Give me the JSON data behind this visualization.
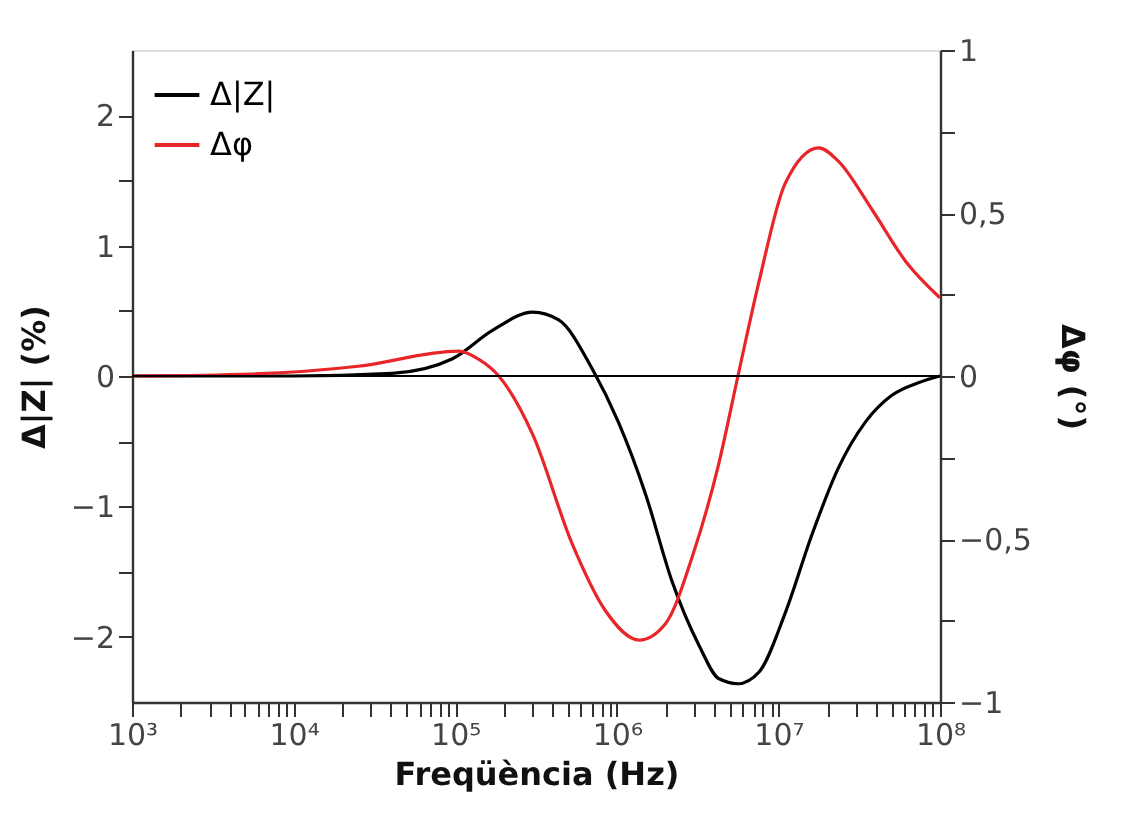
{
  "chart_data": {
    "type": "line",
    "xlabel": "Freqüència (Hz)",
    "ylabel": "Δ|Z| (%)",
    "y2label": "Δφ (°)",
    "log": "x",
    "xlim": [
      1000,
      100000000
    ],
    "xticks": [
      {
        "value": 1000,
        "label": "10³"
      },
      {
        "value": 2000,
        "label": null
      },
      {
        "value": 3000,
        "label": null
      },
      {
        "value": 4000,
        "label": null
      },
      {
        "value": 5000,
        "label": null
      },
      {
        "value": 6000,
        "label": null
      },
      {
        "value": 7000,
        "label": null
      },
      {
        "value": 8000,
        "label": null
      },
      {
        "value": 9000,
        "label": null
      },
      {
        "value": 10000,
        "label": "10⁴"
      },
      {
        "value": 20000,
        "label": null
      },
      {
        "value": 30000,
        "label": null
      },
      {
        "value": 40000,
        "label": null
      },
      {
        "value": 50000,
        "label": null
      },
      {
        "value": 60000,
        "label": null
      },
      {
        "value": 70000,
        "label": null
      },
      {
        "value": 80000,
        "label": null
      },
      {
        "value": 90000,
        "label": null
      },
      {
        "value": 100000,
        "label": "10⁵"
      },
      {
        "value": 200000,
        "label": null
      },
      {
        "value": 300000,
        "label": null
      },
      {
        "value": 400000,
        "label": null
      },
      {
        "value": 500000,
        "label": null
      },
      {
        "value": 600000,
        "label": null
      },
      {
        "value": 700000,
        "label": null
      },
      {
        "value": 800000,
        "label": null
      },
      {
        "value": 900000,
        "label": null
      },
      {
        "value": 1000000,
        "label": "10⁶"
      },
      {
        "value": 2000000,
        "label": null
      },
      {
        "value": 3000000,
        "label": null
      },
      {
        "value": 4000000,
        "label": null
      },
      {
        "value": 5000000,
        "label": null
      },
      {
        "value": 6000000,
        "label": null
      },
      {
        "value": 7000000,
        "label": null
      },
      {
        "value": 8000000,
        "label": null
      },
      {
        "value": 9000000,
        "label": null
      },
      {
        "value": 10000000,
        "label": "10⁷"
      },
      {
        "value": 20000000,
        "label": null
      },
      {
        "value": 30000000,
        "label": null
      },
      {
        "value": 40000000,
        "label": null
      },
      {
        "value": 50000000,
        "label": null
      },
      {
        "value": 60000000,
        "label": null
      },
      {
        "value": 70000000,
        "label": null
      },
      {
        "value": 80000000,
        "label": null
      },
      {
        "value": 90000000,
        "label": null
      },
      {
        "value": 100000000,
        "label": "10⁸"
      }
    ],
    "ylim": [
      -2.5,
      2.5
    ],
    "yticks": [
      {
        "value": -2,
        "label": "−2"
      },
      {
        "value": -1.5,
        "label": null
      },
      {
        "value": -1,
        "label": "−1"
      },
      {
        "value": -0.5,
        "label": null
      },
      {
        "value": 0,
        "label": "0"
      },
      {
        "value": 0.5,
        "label": null
      },
      {
        "value": 1,
        "label": "1"
      },
      {
        "value": 1.5,
        "label": null
      },
      {
        "value": 2,
        "label": "2"
      }
    ],
    "y2lim": [
      -1,
      1
    ],
    "y2ticks": [
      {
        "value": -1,
        "label": "−1"
      },
      {
        "value": -0.75,
        "label": null
      },
      {
        "value": -0.5,
        "label": "−0,5"
      },
      {
        "value": -0.25,
        "label": null
      },
      {
        "value": 0,
        "label": "0"
      },
      {
        "value": 0.25,
        "label": null
      },
      {
        "value": 0.5,
        "label": "0,5"
      },
      {
        "value": 0.75,
        "label": null
      },
      {
        "value": 1,
        "label": "1"
      }
    ],
    "ref_lines": [
      {
        "axis": "y",
        "value": 0,
        "color": "#000000"
      }
    ],
    "legend": "top left",
    "grid": false,
    "series": [
      {
        "name": "Δ|Z|",
        "color": "#000000",
        "x": [
          1000,
          9800,
          40700,
          95500,
          170000,
          302000,
          437000,
          708000,
          1020000,
          1510000,
          2190000,
          3240000,
          4270000,
          5620000,
          7590000,
          11000000,
          16200000,
          23400000,
          34700000,
          50100000,
          74100000,
          100000000
        ],
        "values": [
          0,
          0,
          0.02,
          0.13,
          0.35,
          0.49,
          0.43,
          0.05,
          -0.35,
          -0.91,
          -1.57,
          -2.07,
          -2.32,
          -2.36,
          -2.27,
          -1.82,
          -1.21,
          -0.71,
          -0.35,
          -0.15,
          -0.05,
          0
        ]
      },
      {
        "name": "Δφ",
        "color": "#e8262a",
        "axis": "y2",
        "x": [
          1000,
          5500,
          25100,
          105000,
          141000,
          186000,
          302000,
          525000,
          851000,
          1380000,
          2000000,
          2950000,
          4270000,
          5620000,
          7590000,
          11000000,
          17800000,
          23400000,
          38000000,
          61700000,
          100000000
        ],
        "values": [
          0,
          0.006,
          0.03,
          0.076,
          0.05,
          0,
          -0.18,
          -0.51,
          -0.72,
          -0.81,
          -0.76,
          -0.55,
          -0.27,
          0,
          0.29,
          0.59,
          0.7,
          0.66,
          0.51,
          0.35,
          0.24
        ]
      }
    ]
  }
}
